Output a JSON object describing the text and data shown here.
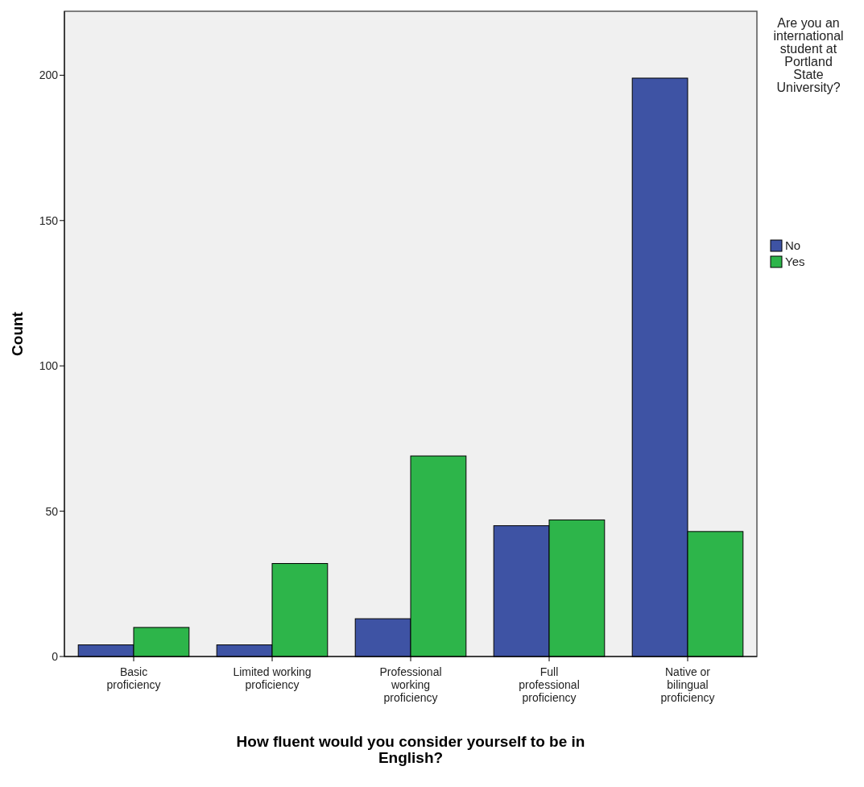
{
  "chart_data": {
    "type": "bar",
    "xlabel": "How fluent would you consider yourself to be in English?",
    "ylabel": "Count",
    "legend_title": "Are you an international student at Portland State University?",
    "categories": [
      "Basic proficiency",
      "Limited working proficiency",
      "Professional working proficiency",
      "Full professional proficiency",
      "Native or bilingual proficiency"
    ],
    "series": [
      {
        "name": "No",
        "color": "#3e53a4",
        "values": [
          4,
          4,
          13,
          45,
          199
        ]
      },
      {
        "name": "Yes",
        "color": "#2db54a",
        "values": [
          10,
          32,
          69,
          47,
          43
        ]
      }
    ],
    "ylim": [
      0,
      222
    ],
    "yticks": [
      0,
      50,
      100,
      150,
      200
    ],
    "grid": false,
    "legend": "right"
  }
}
